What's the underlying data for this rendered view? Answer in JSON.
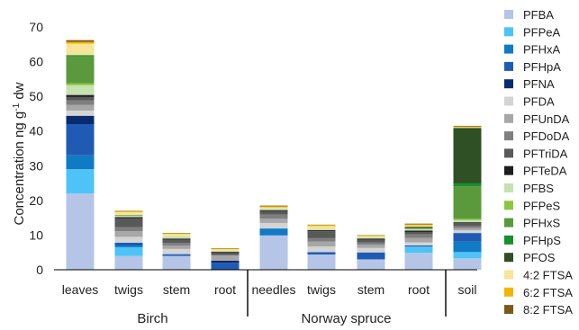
{
  "chart_data": {
    "type": "bar",
    "stacked": true,
    "ylabel_main": "Concentration  ng g",
    "ylabel_sup": "-1",
    "ylabel_tail": " dw",
    "ylim": [
      0,
      70
    ],
    "yticks": [
      0,
      10,
      20,
      30,
      40,
      50,
      60,
      70
    ],
    "grid": false,
    "legend_position": "right",
    "categories": [
      "leaves",
      "twigs",
      "stem",
      "root",
      "needles",
      "twigs",
      "stem",
      "root",
      "soil"
    ],
    "groups": [
      {
        "label": "Birch",
        "categories": [
          0,
          1,
          2,
          3
        ]
      },
      {
        "label": "Norway spruce",
        "categories": [
          4,
          5,
          6,
          7
        ]
      },
      {
        "label": "",
        "categories": [
          8
        ]
      }
    ],
    "series": [
      {
        "name": "PFBA",
        "color": "#b4c5e7",
        "values": [
          22.0,
          4.0,
          4.0,
          0.0,
          9.9,
          4.4,
          3.0,
          4.9,
          3.3
        ]
      },
      {
        "name": "PFPeA",
        "color": "#4dc3f7",
        "values": [
          7.0,
          2.5,
          0.0,
          0.0,
          0.0,
          0.0,
          0.0,
          1.8,
          1.8
        ]
      },
      {
        "name": "PFHxA",
        "color": "#0f7bc4",
        "values": [
          4.0,
          0.5,
          0.0,
          0.0,
          2.0,
          0.0,
          0.0,
          0.0,
          3.0
        ]
      },
      {
        "name": "PFHpA",
        "color": "#1f5bb4",
        "values": [
          9.0,
          0.8,
          0.5,
          2.0,
          0.0,
          0.7,
          2.0,
          0.3,
          2.5
        ]
      },
      {
        "name": "PFNA",
        "color": "#0a2a6e",
        "values": [
          2.4,
          0.0,
          0.0,
          0.6,
          0.0,
          0.0,
          0.0,
          0.0,
          0.0
        ]
      },
      {
        "name": "PFDA",
        "color": "#d4d4d4",
        "values": [
          1.5,
          1.7,
          1.5,
          0.0,
          1.6,
          1.6,
          1.3,
          0.9,
          0.8
        ]
      },
      {
        "name": "PFUnDA",
        "color": "#a7a7a7",
        "values": [
          1.6,
          1.6,
          1.0,
          1.6,
          1.2,
          1.4,
          0.9,
          1.3,
          0.6
        ]
      },
      {
        "name": "PFDoDA",
        "color": "#7f7f7f",
        "values": [
          1.3,
          1.2,
          0.7,
          0.0,
          1.2,
          1.0,
          0.7,
          1.0,
          0.6
        ]
      },
      {
        "name": "PFTriDA",
        "color": "#595959",
        "values": [
          1.0,
          2.6,
          1.0,
          0.8,
          1.0,
          2.0,
          0.8,
          0.7,
          0.8
        ]
      },
      {
        "name": "PFTeDA",
        "color": "#1e1e1e",
        "values": [
          0.6,
          0.3,
          0.3,
          0.2,
          0.3,
          0.3,
          0.3,
          0.4,
          0.3
        ]
      },
      {
        "name": "PFBS",
        "color": "#c6e2b2",
        "values": [
          2.8,
          0.4,
          0.6,
          0.3,
          0.5,
          0.4,
          0.4,
          0.5,
          0.6
        ]
      },
      {
        "name": "PFPeS",
        "color": "#8cc63f",
        "values": [
          0.6,
          0.0,
          0.0,
          0.0,
          0.0,
          0.0,
          0.0,
          0.0,
          0.4
        ]
      },
      {
        "name": "PFHxS",
        "color": "#5a9a3c",
        "values": [
          7.7,
          0.2,
          0.0,
          0.0,
          0.0,
          0.0,
          0.0,
          0.2,
          9.4
        ]
      },
      {
        "name": "PFHpS",
        "color": "#14912c",
        "values": [
          0.4,
          0.0,
          0.0,
          0.0,
          0.0,
          0.0,
          0.0,
          0.0,
          0.8
        ]
      },
      {
        "name": "PFOS",
        "color": "#2f4f24",
        "values": [
          0.0,
          0.0,
          0.0,
          0.0,
          0.0,
          0.0,
          0.0,
          0.4,
          16.0
        ]
      },
      {
        "name": "4:2 FTSA",
        "color": "#f7e59a",
        "values": [
          3.3,
          0.8,
          0.7,
          0.4,
          0.3,
          0.8,
          0.3,
          0.4,
          0.2
        ]
      },
      {
        "name": "6:2 FTSA",
        "color": "#f3b400",
        "values": [
          0.5,
          0.3,
          0.2,
          0.2,
          0.3,
          0.3,
          0.2,
          0.3,
          0.2
        ]
      },
      {
        "name": "8:2 FTSA",
        "color": "#7a5a1a",
        "values": [
          0.5,
          0.1,
          0.1,
          0.1,
          0.2,
          0.1,
          0.1,
          0.2,
          0.2
        ]
      }
    ]
  }
}
